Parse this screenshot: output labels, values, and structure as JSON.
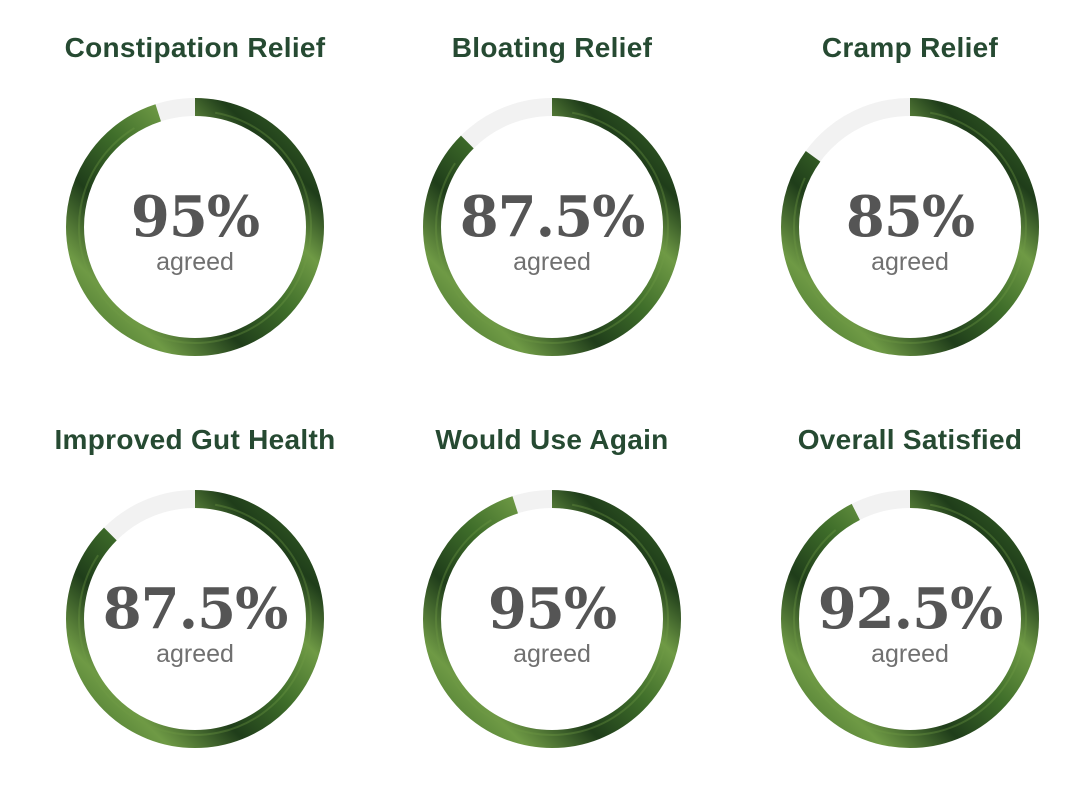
{
  "chart_data": {
    "type": "pie",
    "value_unit": "%",
    "caption": "agreed",
    "colors": {
      "title": "#264a32",
      "ring_dark": "#1f3d1a",
      "ring_mid": "#3f6e2a",
      "ring_light": "#6f9a45",
      "ring_track": "#f2f2f2",
      "value_text": "#555555",
      "caption_text": "#707070"
    },
    "items": [
      {
        "title": "Constipation Relief",
        "value": 95,
        "label": "95%"
      },
      {
        "title": "Bloating Relief",
        "value": 87.5,
        "label": "87.5%"
      },
      {
        "title": "Cramp Relief",
        "value": 85,
        "label": "85%"
      },
      {
        "title": "Improved Gut Health",
        "value": 87.5,
        "label": "87.5%"
      },
      {
        "title": "Would Use Again",
        "value": 95,
        "label": "95%"
      },
      {
        "title": "Overall Satisfied",
        "value": 92.5,
        "label": "92.5%"
      }
    ]
  }
}
